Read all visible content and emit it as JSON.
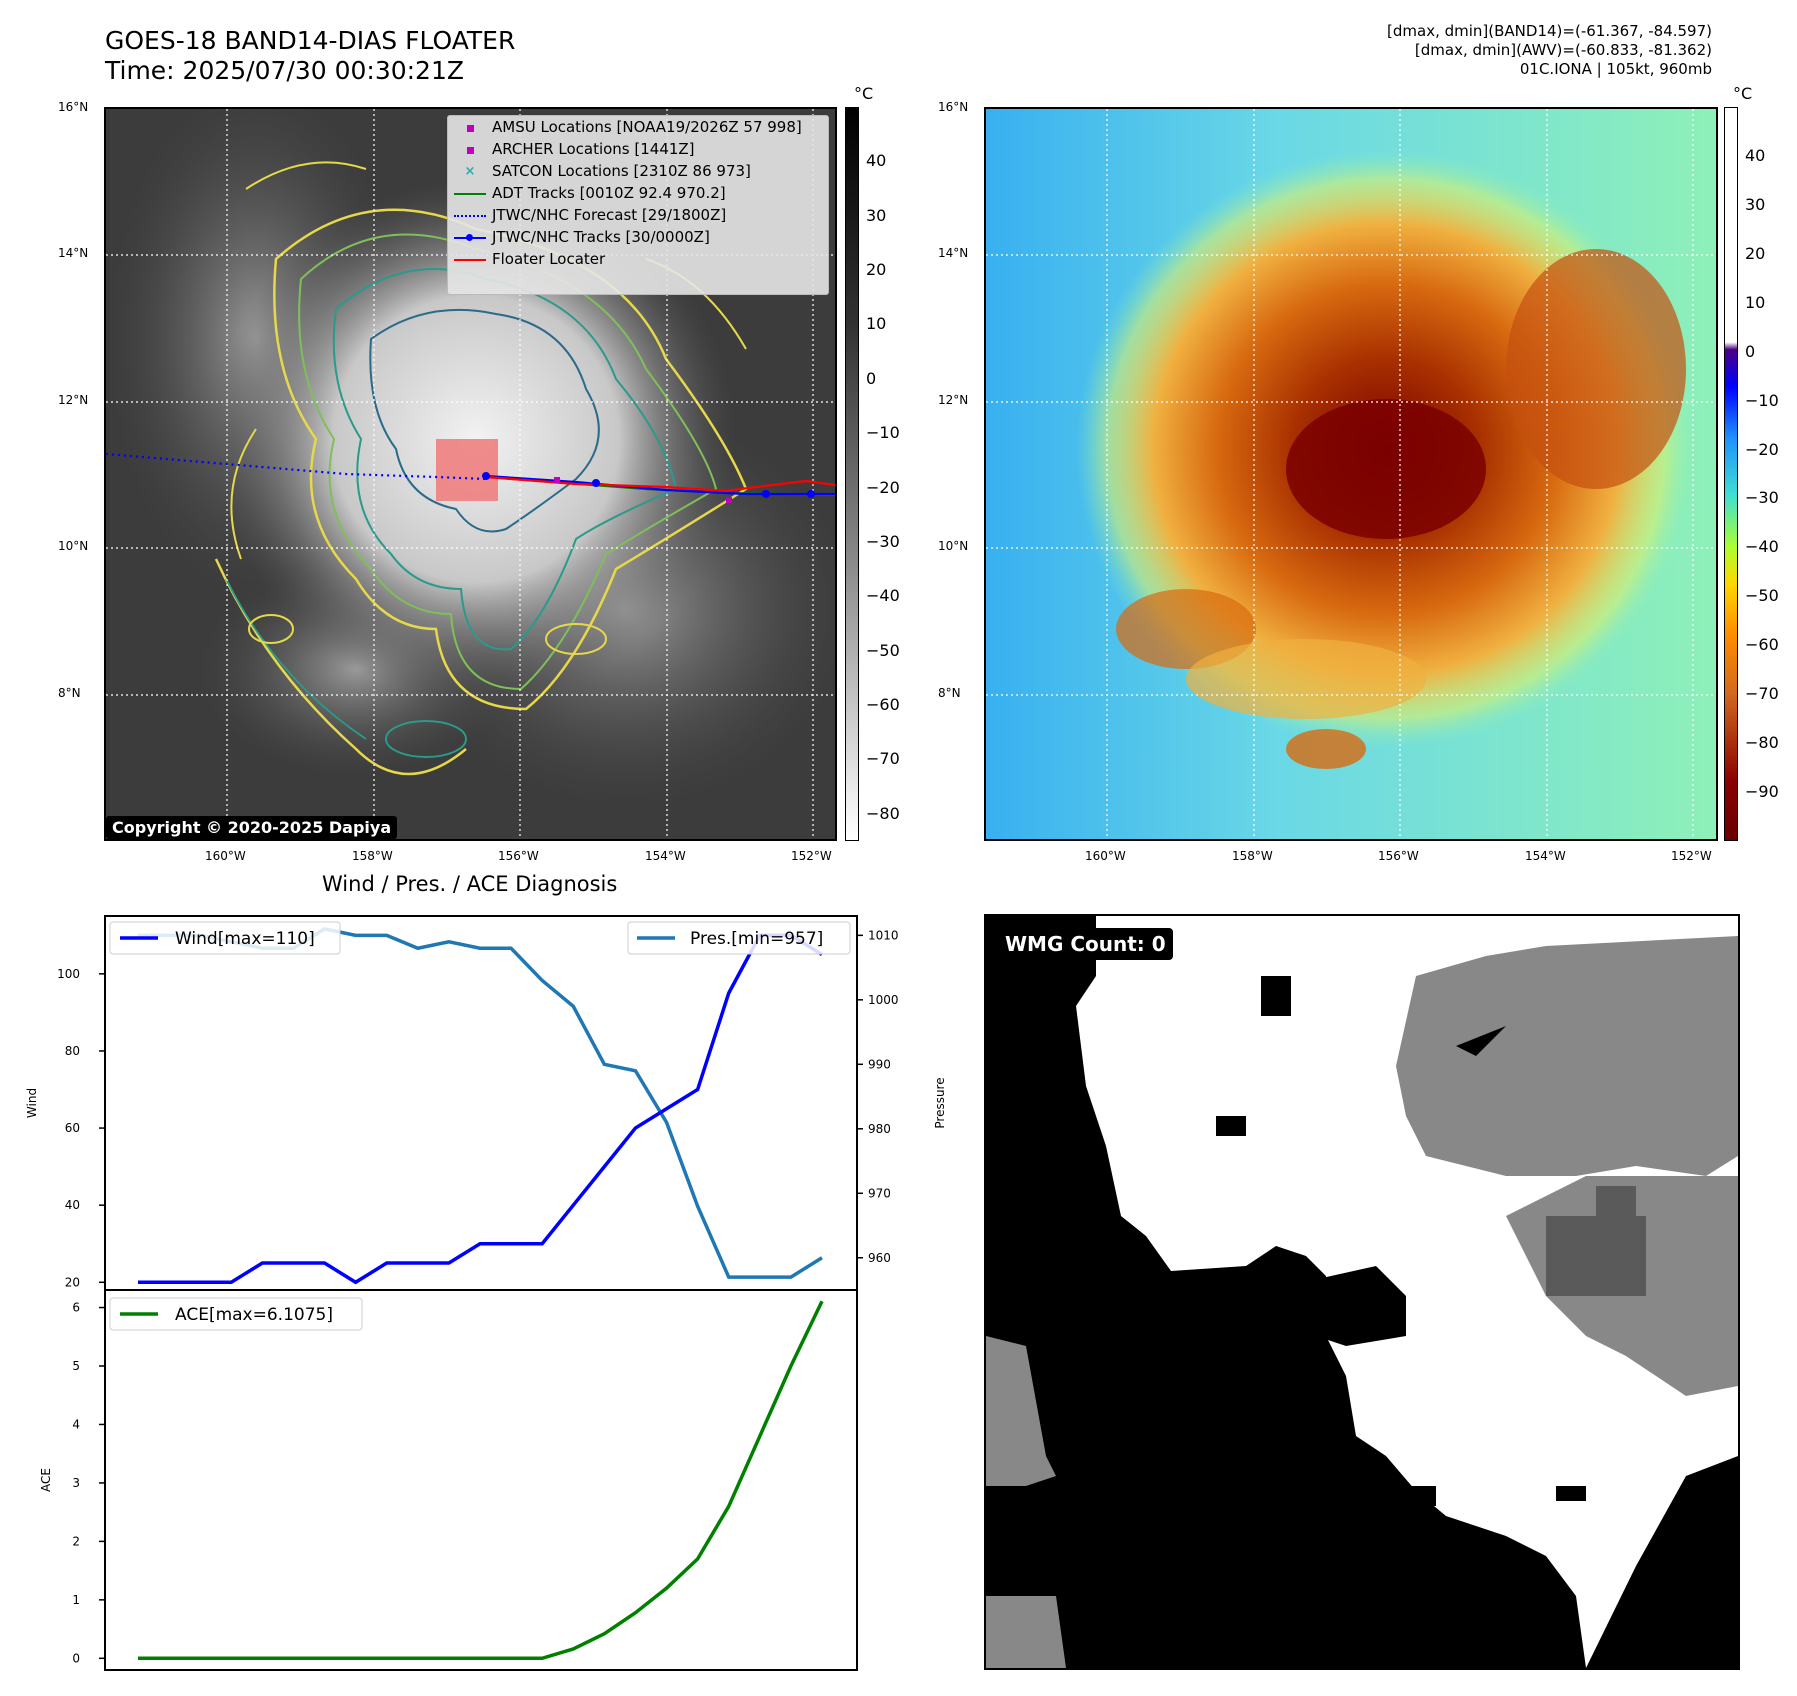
{
  "header": {
    "title_line1": "GOES-18 BAND14-DIAS FLOATER",
    "title_line2": "Time: 2025/07/30 00:30:21Z",
    "info_line1": "[dmax, dmin](BAND14)=(-61.367, -84.597)",
    "info_line2": "[dmax, dmin](AWV)=(-60.833, -81.362)",
    "info_line3": "01C.IONA | 105kt, 960mb"
  },
  "map": {
    "lat_labels": [
      "16°N",
      "14°N",
      "12°N",
      "10°N",
      "8°N"
    ],
    "lon_labels": [
      "160°W",
      "158°W",
      "156°W",
      "154°W",
      "152°W"
    ],
    "unit": "°C",
    "left_colorbar_ticks": [
      "40",
      "30",
      "20",
      "10",
      "0",
      "−10",
      "−20",
      "−30",
      "−40",
      "−50",
      "−60",
      "−70",
      "−80"
    ],
    "right_colorbar_ticks": [
      "40",
      "30",
      "20",
      "10",
      "0",
      "−10",
      "−20",
      "−30",
      "−40",
      "−50",
      "−60",
      "−70",
      "−80",
      "−90"
    ],
    "copyright": "Copyright © 2020-2025 Dapiya",
    "legend": [
      {
        "label": "AMSU Locations [NOAA19/2026Z 57 998]",
        "color": "#c000c0",
        "marker": "square"
      },
      {
        "label": "ARCHER Locations [1441Z]",
        "color": "#c000c0",
        "marker": "square"
      },
      {
        "label": "SATCON Locations [2310Z 86 973]",
        "color": "#20b0b0",
        "marker": "x"
      },
      {
        "label": "ADT Tracks [0010Z 92.4 970.2]",
        "color": "#008000",
        "marker": "line"
      },
      {
        "label": "JTWC/NHC Forecast [29/1800Z]",
        "color": "#0000ff",
        "marker": "dotted"
      },
      {
        "label": "JTWC/NHC Tracks [30/0000Z]",
        "color": "#0000ff",
        "marker": "line-dot"
      },
      {
        "label": "Floater Locater",
        "color": "#ff0000",
        "marker": "line"
      }
    ]
  },
  "diag": {
    "title": "Wind / Pres. / ACE Diagnosis",
    "wind_legend": "Wind[max=110]",
    "pres_legend": "Pres.[min=957]",
    "ace_legend": "ACE[max=6.1075]",
    "wind_axis_label": "Wind",
    "pres_axis_label": "Pressure",
    "ace_axis_label": "ACE",
    "wind_ticks": [
      "100",
      "80",
      "60",
      "40",
      "20"
    ],
    "pres_ticks": [
      "1010",
      "1000",
      "990",
      "980",
      "970",
      "960"
    ],
    "ace_ticks": [
      "6",
      "5",
      "4",
      "3",
      "2",
      "1",
      "0"
    ]
  },
  "wmg": {
    "label": "WMG Count: 0"
  },
  "chart_data": [
    {
      "type": "line",
      "title": "Wind / Pres. / ACE Diagnosis",
      "x": [
        0,
        1,
        2,
        3,
        4,
        5,
        6,
        7,
        8,
        9,
        10,
        11,
        12,
        13,
        14,
        15,
        16,
        17,
        18,
        19,
        20,
        21,
        22
      ],
      "series": [
        {
          "name": "Wind[max=110]",
          "axis": "left",
          "color": "#0000ff",
          "values": [
            20,
            20,
            20,
            20,
            25,
            25,
            25,
            20,
            25,
            25,
            25,
            30,
            30,
            30,
            40,
            50,
            60,
            65,
            70,
            95,
            110,
            110,
            105
          ]
        },
        {
          "name": "Pres.[min=957]",
          "axis": "right",
          "color": "#1f77b4",
          "values": [
            1010,
            1010,
            1010,
            1009,
            1008,
            1008,
            1011,
            1010,
            1010,
            1008,
            1009,
            1008,
            1008,
            1003,
            999,
            990,
            989,
            981,
            968,
            957,
            957,
            957,
            960
          ]
        }
      ],
      "ylabel": "Wind",
      "ylim": [
        18,
        115
      ],
      "ylabel_right": "Pressure",
      "ylim_right": [
        955,
        1013
      ]
    },
    {
      "type": "line",
      "x": [
        0,
        1,
        2,
        3,
        4,
        5,
        6,
        7,
        8,
        9,
        10,
        11,
        12,
        13,
        14,
        15,
        16,
        17,
        18,
        19,
        20,
        21,
        22
      ],
      "series": [
        {
          "name": "ACE[max=6.1075]",
          "color": "#008000",
          "values": [
            0,
            0,
            0,
            0,
            0,
            0,
            0,
            0,
            0,
            0,
            0,
            0,
            0,
            0,
            0.16,
            0.42,
            0.78,
            1.2,
            1.7,
            2.6,
            3.8,
            5.0,
            6.1075
          ]
        }
      ],
      "ylabel": "ACE",
      "ylim": [
        -0.2,
        6.3
      ]
    }
  ]
}
